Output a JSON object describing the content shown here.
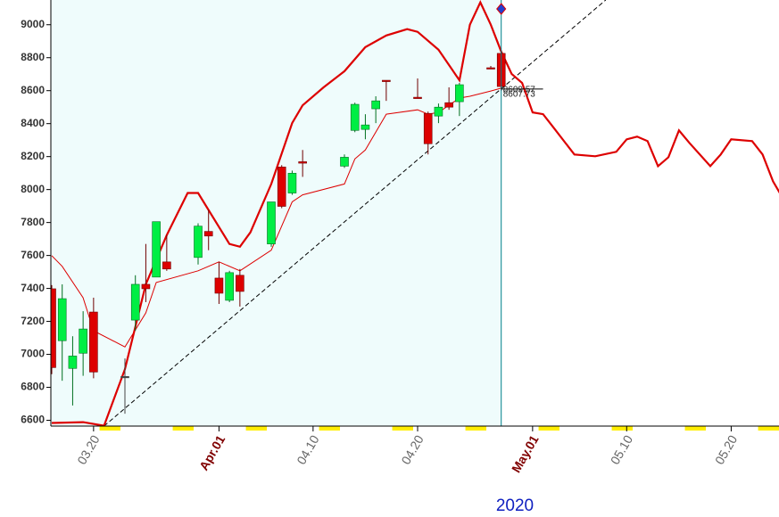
{
  "chart_data": {
    "type": "candlestick",
    "year": "2020",
    "xlim": [
      "2020-03-16",
      "2020-05-25"
    ],
    "ylim": [
      6565,
      9150
    ],
    "yticks": [
      6600,
      6800,
      7000,
      7200,
      7400,
      7600,
      7800,
      8000,
      8200,
      8400,
      8600,
      8800,
      9000
    ],
    "xticks": [
      {
        "value": "2020-03-20",
        "label": "03.20"
      },
      {
        "value": "2020-04-01",
        "label": "Apr.01"
      },
      {
        "value": "2020-04-10",
        "label": "04.10"
      },
      {
        "value": "2020-04-20",
        "label": "04.20"
      },
      {
        "value": "2020-05-01",
        "label": "May.01"
      },
      {
        "value": "2020-05-10",
        "label": "05.10"
      },
      {
        "value": "2020-05-20",
        "label": "05.20"
      }
    ],
    "up_color": "#00ee44",
    "down_color": "#dd0000",
    "x": [
      "2020-03-16",
      "2020-03-17",
      "2020-03-18",
      "2020-03-19",
      "2020-03-20",
      "2020-03-23",
      "2020-03-24",
      "2020-03-25",
      "2020-03-26",
      "2020-03-27",
      "2020-03-30",
      "2020-03-31",
      "2020-04-01",
      "2020-04-02",
      "2020-04-03",
      "2020-04-06",
      "2020-04-07",
      "2020-04-08",
      "2020-04-09",
      "2020-04-13",
      "2020-04-14",
      "2020-04-15",
      "2020-04-16",
      "2020-04-17",
      "2020-04-20",
      "2020-04-21",
      "2020-04-22",
      "2020-04-23",
      "2020-04-24",
      "2020-04-27",
      "2020-04-28"
    ],
    "open": [
      7398,
      7083,
      6915,
      7007,
      7257,
      6866,
      7208,
      7425,
      7469,
      7561,
      7588,
      7746,
      7463,
      7328,
      7480,
      7670,
      8137,
      7979,
      8169,
      8142,
      8359,
      8365,
      8490,
      8663,
      8560,
      8462,
      8446,
      8527,
      8533,
      8739,
      8826
    ],
    "high": [
      7420,
      7425,
      7110,
      7262,
      7344,
      6975,
      7480,
      7670,
      7805,
      7724,
      7795,
      7876,
      7561,
      7507,
      7518,
      7925,
      8148,
      8115,
      8240,
      8213,
      8527,
      8457,
      8566,
      8663,
      8674,
      8473,
      8522,
      8620,
      8647,
      8750,
      8837
    ],
    "low": [
      6880,
      6840,
      6690,
      6870,
      6855,
      6640,
      7143,
      7317,
      7469,
      7507,
      7545,
      7632,
      7306,
      7317,
      7290,
      7653,
      7887,
      7968,
      8077,
      8131,
      8348,
      8305,
      8403,
      8538,
      8555,
      8213,
      8403,
      8484,
      8446,
      8734,
      8598
    ],
    "close": [
      6920,
      7338,
      6990,
      7154,
      6893,
      6866,
      7425,
      7398,
      7805,
      7518,
      7778,
      7718,
      7371,
      7496,
      7382,
      7925,
      7898,
      8099,
      8160,
      8196,
      8517,
      8392,
      8538,
      8656,
      8555,
      8278,
      8500,
      8500,
      8636,
      8734,
      8625
    ],
    "lines": [
      {
        "color": "#dd0000",
        "x": [
          "2020-03-16",
          "2020-03-19",
          "2020-03-21",
          "2020-03-23",
          "2020-03-25",
          "2020-03-27",
          "2020-03-29",
          "2020-03-30",
          "2020-04-02",
          "2020-04-03",
          "2020-04-04",
          "2020-04-06",
          "2020-04-08",
          "2020-04-09",
          "2020-04-11",
          "2020-04-13",
          "2020-04-15",
          "2020-04-17",
          "2020-04-19",
          "2020-04-20",
          "2020-04-22",
          "2020-04-24",
          "2020-04-25",
          "2020-04-26",
          "2020-04-27",
          "2020-04-28",
          "2020-04-29",
          "2020-04-30",
          "2020-05-01",
          "2020-05-02",
          "2020-05-03",
          "2020-05-05",
          "2020-05-07",
          "2020-05-09",
          "2020-05-10",
          "2020-05-11",
          "2020-05-12",
          "2020-05-13",
          "2020-05-14",
          "2020-05-15",
          "2020-05-16",
          "2020-05-18",
          "2020-05-19",
          "2020-05-20",
          "2020-05-22",
          "2020-05-23",
          "2020-05-24",
          "2020-05-25"
        ],
        "values": [
          6584,
          6589,
          6567,
          6910,
          7425,
          7724,
          7979,
          7979,
          7670,
          7653,
          7740,
          8034,
          8403,
          8511,
          8620,
          8718,
          8864,
          8935,
          8973,
          8957,
          8848,
          8663,
          9000,
          9136,
          9000,
          8837,
          8701,
          8647,
          8468,
          8457,
          8376,
          8213,
          8202,
          8229,
          8305,
          8321,
          8294,
          8142,
          8196,
          8359,
          8283,
          8142,
          8213,
          8305,
          8294,
          8213,
          8050,
          7941
        ]
      },
      {
        "color": "#dd0000",
        "x": [
          "2020-03-16",
          "2020-03-17",
          "2020-03-19",
          "2020-03-20",
          "2020-03-23",
          "2020-03-25",
          "2020-03-26",
          "2020-03-30",
          "2020-04-01",
          "2020-04-03",
          "2020-04-06",
          "2020-04-08",
          "2020-04-09",
          "2020-04-13",
          "2020-04-14",
          "2020-04-15",
          "2020-04-17",
          "2020-04-20",
          "2020-04-21",
          "2020-04-22",
          "2020-04-24",
          "2020-04-25",
          "2020-04-27",
          "2020-04-28"
        ],
        "values": [
          7599,
          7534,
          7344,
          7143,
          7045,
          7252,
          7436,
          7507,
          7561,
          7507,
          7632,
          7925,
          7968,
          8034,
          8186,
          8240,
          8457,
          8484,
          8457,
          8468,
          8555,
          8566,
          8598,
          8615
        ]
      }
    ],
    "trendline": {
      "color": "#000000",
      "x": [
        "2020-03-21",
        "2020-05-08"
      ],
      "values": [
        6565,
        9150
      ]
    },
    "cursor": {
      "x": "2020-04-28",
      "color": "#00808a",
      "shade": "#effcfc"
    },
    "price_marker": {
      "x": [
        "2020-04-28",
        "2020-05-02"
      ],
      "value": 8609.57,
      "labels": [
        "8609.57",
        "8607.73"
      ]
    }
  }
}
